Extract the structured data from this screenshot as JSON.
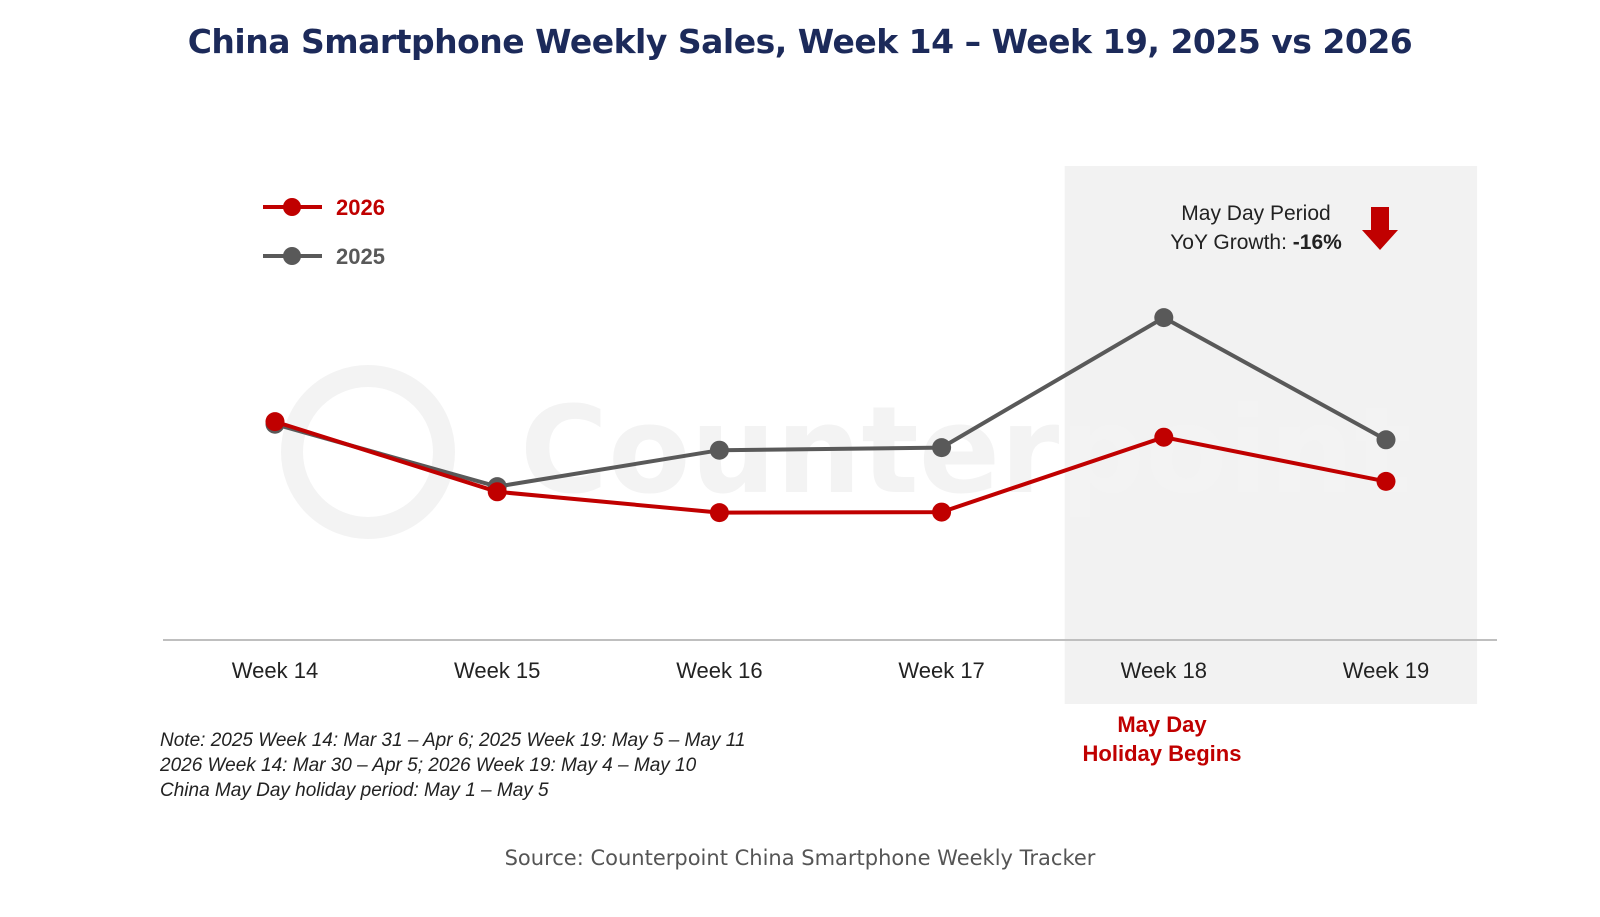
{
  "title": "China Smartphone Weekly Sales, Week 14 – Week 19, 2025 vs 2026",
  "source": "Source: Counterpoint China Smartphone Weekly Tracker",
  "watermark": "Counterpoint",
  "notes": [
    "Note: 2025 Week 14: Mar 31 – Apr 6; 2025 Week 19: May 5 – May 11",
    "2026 Week 14: Mar 30 – Apr 5; 2026 Week 19: May 4 – May 10",
    "China May Day holiday period: May 1 – May 5"
  ],
  "callout": {
    "line1": "May Day Period",
    "line2_prefix": "YoY Growth: ",
    "line2_value": "-16%"
  },
  "holiday_label": {
    "line1": "May Day",
    "line2": "Holiday Begins"
  },
  "chart_data": {
    "type": "line",
    "title": "China Smartphone Weekly Sales, Week 14 – Week 19, 2025 vs 2026",
    "xlabel": "",
    "ylabel": "",
    "categories": [
      "Week 14",
      "Week 15",
      "Week 16",
      "Week 17",
      "Week 18",
      "Week 19"
    ],
    "ylim": [
      0,
      100
    ],
    "y_axis_shown": false,
    "grid": false,
    "legend": "top-left",
    "shaded_region": {
      "from": "Week 18",
      "to": "Week 19"
    },
    "series": [
      {
        "name": "2026",
        "color": "#c00000",
        "values": [
          42.0,
          28.5,
          24.5,
          24.6,
          39.0,
          30.5
        ]
      },
      {
        "name": "2025",
        "color": "#595959",
        "values": [
          41.5,
          29.5,
          36.5,
          37.0,
          62.0,
          38.5
        ]
      }
    ]
  },
  "colors": {
    "title": "#1c2a5a",
    "shade": "#f2f2f2",
    "axis": "#bfbfbf",
    "accent_red": "#c00000",
    "gray_series": "#595959"
  }
}
